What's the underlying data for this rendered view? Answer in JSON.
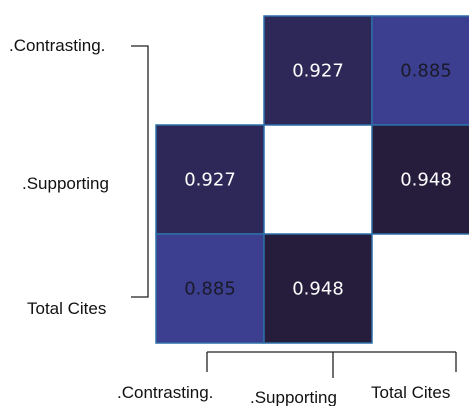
{
  "chart_data": {
    "type": "heatmap",
    "title": "",
    "row_labels": [
      ".Contrasting.",
      ".Supporting",
      "Total Cites"
    ],
    "col_labels": [
      ".Contrasting.",
      ".Supporting",
      "Total Cites"
    ],
    "matrix": [
      [
        null,
        0.927,
        0.885
      ],
      [
        0.927,
        null,
        0.948
      ],
      [
        0.885,
        0.948,
        null
      ]
    ],
    "value_labels": [
      [
        "",
        "0.927",
        "0.885"
      ],
      [
        "0.927",
        "",
        "0.948"
      ],
      [
        "0.885",
        "0.948",
        ""
      ]
    ],
    "colors": {
      "low": "#3c3f8f",
      "high": "#261d3d",
      "light_text": "#ffffff",
      "dark_text": "#1a1a2a",
      "cell_border": "#2d6fa8"
    }
  }
}
